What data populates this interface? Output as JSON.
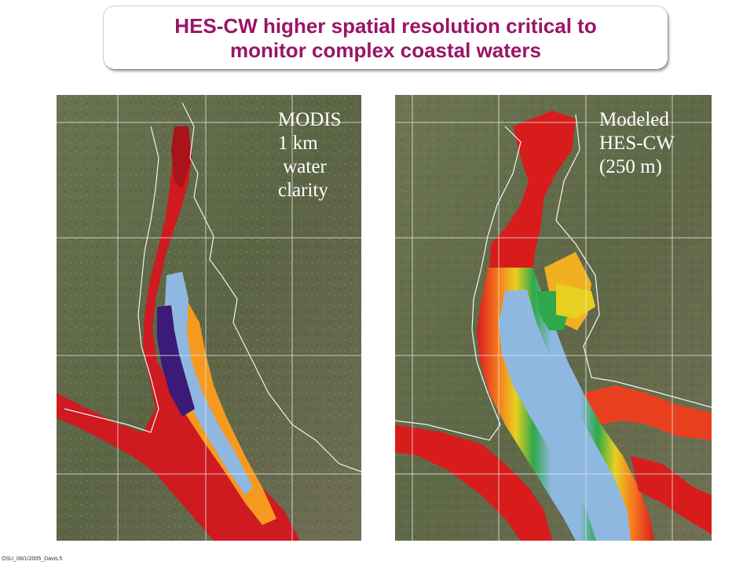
{
  "title": {
    "line1": "HES-CW higher spatial resolution critical to",
    "line2": "monitor complex coastal waters"
  },
  "panels": {
    "left": {
      "label_lines": [
        "MODIS",
        "1 km",
        " water",
        "clarity"
      ]
    },
    "right": {
      "label_lines": [
        "Modeled",
        "HES-CW",
        "(250 m)"
      ]
    }
  },
  "footer": "OSU_08/1/2005_Davis.5",
  "colors": {
    "title": "#9a1466",
    "land": "#5f6a45",
    "water_clear": "#8fb8e0",
    "water_turbid": "#d0191f",
    "water_mid": "#f5a020",
    "water_green": "#2ea84a",
    "water_deep": "#3c1a78",
    "grid": "#e8e8e8"
  }
}
